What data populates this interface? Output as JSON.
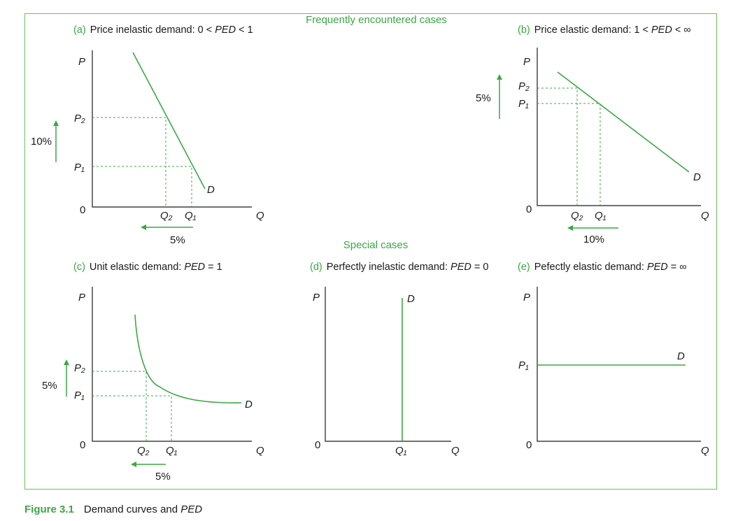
{
  "headings": {
    "frequent": "Frequently encountered cases",
    "special": "Special cases"
  },
  "panels": {
    "a": {
      "tag": "(a)",
      "title_pre": "Price inelastic demand: 0 < ",
      "title_ped": "PED",
      "title_post": " < 1",
      "pct_vertical": "10%",
      "pct_horizontal": "5%"
    },
    "b": {
      "tag": "(b)",
      "title_pre": "Price elastic demand: 1 < ",
      "title_ped": "PED",
      "title_post": " < ∞",
      "pct_vertical": "5%",
      "pct_horizontal": "10%"
    },
    "c": {
      "tag": "(c)",
      "title_pre": "Unit elastic demand: ",
      "title_ped": "PED",
      "title_post": " = 1",
      "pct_vertical": "5%",
      "pct_horizontal": "5%"
    },
    "d": {
      "tag": "(d)",
      "title_pre": "Perfectly inelastic demand: ",
      "title_ped": "PED",
      "title_post": " = 0"
    },
    "e": {
      "tag": "(e)",
      "title_pre": "Pefectly elastic demand: ",
      "title_ped": "PED",
      "title_post": " = ∞"
    }
  },
  "axis_labels": {
    "price": "P",
    "quantity": "Q",
    "origin": "0",
    "curve": "D",
    "p1": "P₁",
    "p2": "P₂",
    "q1": "Q₁",
    "q2": "Q₂"
  },
  "caption": {
    "figure": "Figure 3.1",
    "text_pre": "Demand curves and ",
    "text_ped": "PED"
  },
  "colors": {
    "accent": "#3aa845",
    "frame": "#6cbf5a",
    "text": "#1a1a1a"
  }
}
